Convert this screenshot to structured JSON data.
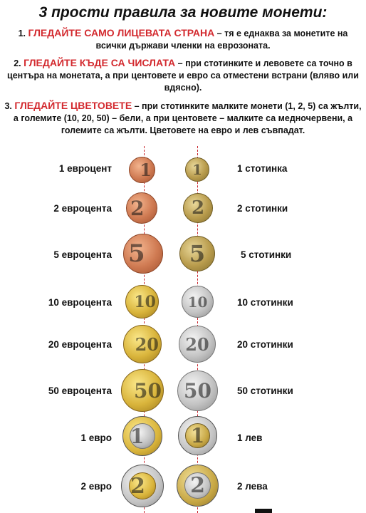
{
  "title": "3 прости правила за новите монети:",
  "rules": [
    {
      "number": "1.",
      "highlight": "ГЛЕДАЙТЕ САМО ЛИЦЕВАТА СТРАНА",
      "text": " – тя е еднаква за монетите на всички държави членки на еврозоната."
    },
    {
      "number": "2.",
      "highlight": "ГЛЕДАЙТЕ КЪДЕ СА ЧИСЛАТА",
      "text": " – при стотинките и левовете са точно в центъра на монетата, а при центовете и евро са отместени встрани (вляво или вдясно)."
    },
    {
      "number": "3.",
      "highlight": "ГЛЕДАЙТЕ ЦВЕТОВЕТЕ",
      "text": " – при стотинките малките монети (1, 2, 5) са жълти, а големите (10, 20, 50) – бели, а при центовете – малките са медночервени, а големите са жълти. Цветовете на евро и лев съвпадат."
    }
  ],
  "coins": [
    {
      "euro": "1 евроцент",
      "euro_num": "1",
      "bgn": "1 стотинка",
      "bgn_num": "1"
    },
    {
      "euro": "2 евроцента",
      "euro_num": "2",
      "bgn": "2 стотинки",
      "bgn_num": "2"
    },
    {
      "euro": "5 евроцента",
      "euro_num": "5",
      "bgn": "5 стотинки",
      "bgn_num": "5"
    },
    {
      "euro": "10 евроцента",
      "euro_num": "10",
      "bgn": "10 стотинки",
      "bgn_num": "10"
    },
    {
      "euro": "20 евроцента",
      "euro_num": "20",
      "bgn": "20 стотинки",
      "bgn_num": "20"
    },
    {
      "euro": "50 евроцента",
      "euro_num": "50",
      "bgn": "50 стотинки",
      "bgn_num": "50"
    },
    {
      "euro": "1 евро",
      "euro_num": "1",
      "bgn": "1 лев",
      "bgn_num": "1"
    },
    {
      "euro": "2 евро",
      "euro_num": "2",
      "bgn": "2 лева",
      "bgn_num": "2"
    }
  ],
  "colors": {
    "highlight": "#d32a2f",
    "guide_line": "#c8242b",
    "copper": "#cf7a52",
    "nordic_gold": "#d9b43b",
    "bgn_brass": "#b99c4d",
    "silver": "#c4c4c4"
  }
}
